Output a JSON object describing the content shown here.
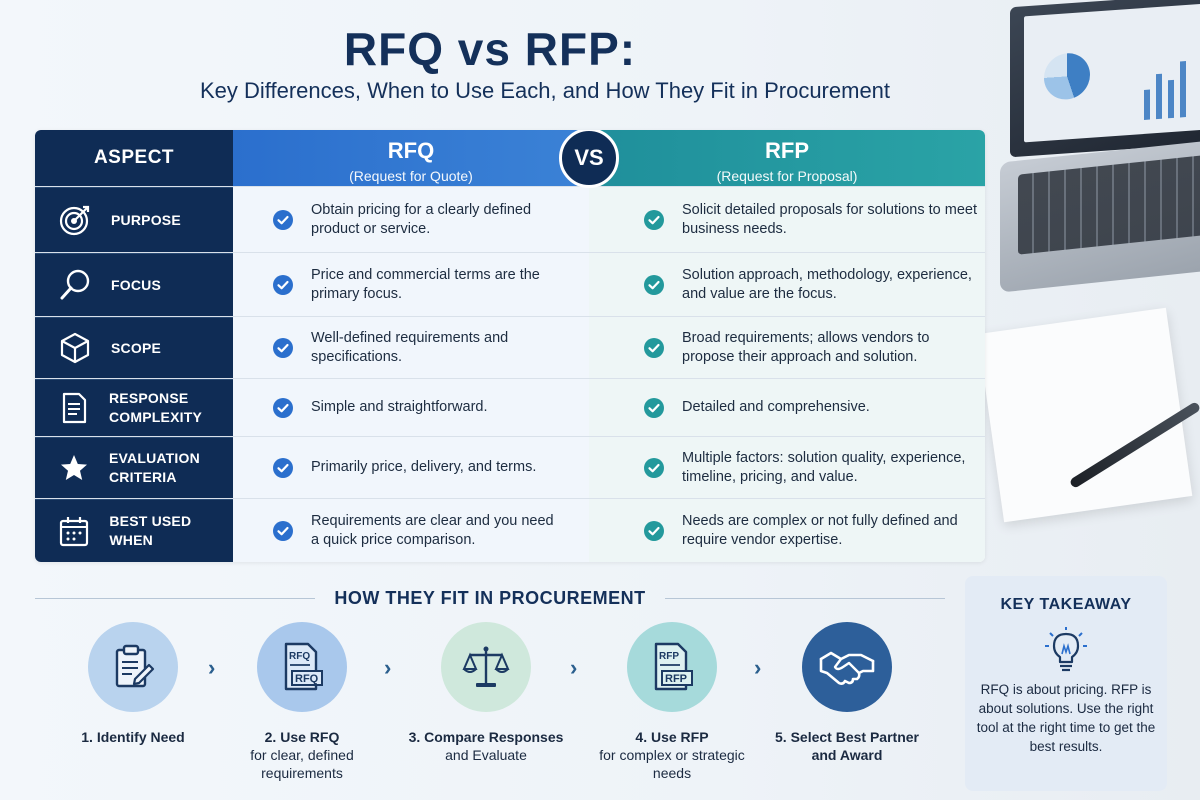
{
  "title": "RFQ vs RFP:",
  "subtitle": "Key Differences, When to Use Each, and How They Fit in Procurement",
  "table": {
    "aspect_header": "ASPECT",
    "rfq_title": "RFQ",
    "rfq_sub": "(Request for Quote)",
    "vs": "VS",
    "rfp_title": "RFP",
    "rfp_sub": "(Request for Proposal)",
    "rows": [
      {
        "icon": "target-icon",
        "aspect": "PURPOSE",
        "rfq": "Obtain pricing for a clearly defined product or service.",
        "rfp": "Solicit detailed proposals for solutions to meet business needs."
      },
      {
        "icon": "magnifier-icon",
        "aspect": "FOCUS",
        "rfq": "Price and commercial terms are the primary focus.",
        "rfp": "Solution approach, methodology, experience, and value are the focus."
      },
      {
        "icon": "cube-icon",
        "aspect": "SCOPE",
        "rfq": "Well-defined requirements and specifications.",
        "rfp": "Broad requirements; allows vendors to propose their approach and solution."
      },
      {
        "icon": "document-icon",
        "aspect": "RESPONSE COMPLEXITY",
        "rfq": "Simple and straightforward.",
        "rfp": "Detailed and comprehensive."
      },
      {
        "icon": "star-icon",
        "aspect": "EVALUATION CRITERIA",
        "rfq": "Primarily price, delivery, and terms.",
        "rfp": "Multiple factors: solution quality, experience, timeline, pricing, and value."
      },
      {
        "icon": "calendar-icon",
        "aspect": "BEST USED WHEN",
        "rfq": "Requirements are clear and you need a quick price comparison.",
        "rfp": "Needs are complex or not fully defined and require vendor expertise."
      }
    ]
  },
  "procurement": {
    "title": "HOW THEY FIT IN PROCUREMENT",
    "steps": [
      {
        "icon": "clipboard-pencil-icon",
        "label": "1. Identify Need",
        "detail": "",
        "color": "#b9d3ee"
      },
      {
        "icon": "rfq-document-icon",
        "label": "2. Use RFQ",
        "detail": "for clear, defined requirements",
        "color": "#a9c8ec",
        "doc_text": "RFQ"
      },
      {
        "icon": "scales-icon",
        "label": "3. Compare Responses",
        "detail": "and Evaluate",
        "color": "#cfe8dc"
      },
      {
        "icon": "rfp-document-icon",
        "label": "4. Use RFP",
        "detail": "for complex or strategic needs",
        "color": "#a6dadb",
        "doc_text": "RFP"
      },
      {
        "icon": "handshake-icon",
        "label": "5. Select Best Partner",
        "detail": "and Award",
        "color": "#2d5f9a"
      }
    ]
  },
  "takeaway": {
    "title": "KEY TAKEAWAY",
    "text": "RFQ is about pricing. RFP is about solutions. Use the right tool at the right time to get the best results."
  },
  "colors": {
    "navy": "#0f2c55",
    "rfq_blue": "#2b6fcd",
    "rfp_teal": "#2aa3a6"
  }
}
